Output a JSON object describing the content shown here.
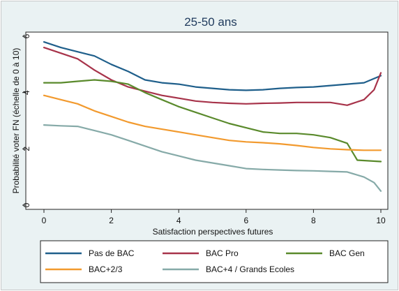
{
  "chart_data": {
    "type": "line",
    "title": "25-50 ans",
    "xlabel": "Satisfaction perspectives futures",
    "ylabel": "Probabilité voter FN (échelle de 0 à 10)",
    "xlim": [
      0,
      10
    ],
    "ylim": [
      0,
      6
    ],
    "xticks": [
      "0",
      "2",
      "4",
      "6",
      "8",
      "10"
    ],
    "yticks": [
      "0",
      "2",
      "4",
      "6"
    ],
    "grid": false,
    "legend_position": "bottom",
    "series": [
      {
        "name": "Pas de BAC",
        "color": "#1f5f8b",
        "points": [
          [
            0,
            5.8
          ],
          [
            0.5,
            5.6
          ],
          [
            1,
            5.45
          ],
          [
            1.5,
            5.3
          ],
          [
            2,
            5.0
          ],
          [
            2.5,
            4.75
          ],
          [
            3,
            4.45
          ],
          [
            3.5,
            4.35
          ],
          [
            4,
            4.3
          ],
          [
            4.5,
            4.2
          ],
          [
            5,
            4.15
          ],
          [
            5.5,
            4.1
          ],
          [
            6,
            4.08
          ],
          [
            6.5,
            4.1
          ],
          [
            7,
            4.15
          ],
          [
            7.5,
            4.18
          ],
          [
            8,
            4.2
          ],
          [
            8.5,
            4.25
          ],
          [
            9,
            4.3
          ],
          [
            9.5,
            4.35
          ],
          [
            10,
            4.6
          ]
        ]
      },
      {
        "name": "BAC Pro",
        "color": "#a7334a",
        "points": [
          [
            0,
            5.6
          ],
          [
            0.5,
            5.4
          ],
          [
            1,
            5.2
          ],
          [
            1.5,
            4.8
          ],
          [
            2,
            4.45
          ],
          [
            2.5,
            4.2
          ],
          [
            3,
            4.05
          ],
          [
            3.5,
            3.9
          ],
          [
            4,
            3.8
          ],
          [
            4.5,
            3.7
          ],
          [
            5,
            3.65
          ],
          [
            5.5,
            3.62
          ],
          [
            6,
            3.6
          ],
          [
            6.5,
            3.62
          ],
          [
            7,
            3.63
          ],
          [
            7.5,
            3.65
          ],
          [
            8,
            3.65
          ],
          [
            8.5,
            3.65
          ],
          [
            9,
            3.55
          ],
          [
            9.5,
            3.75
          ],
          [
            9.8,
            4.1
          ],
          [
            10,
            4.7
          ]
        ]
      },
      {
        "name": "BAC Gen",
        "color": "#5a8a2c",
        "points": [
          [
            0,
            4.35
          ],
          [
            0.5,
            4.35
          ],
          [
            1,
            4.4
          ],
          [
            1.5,
            4.45
          ],
          [
            2,
            4.4
          ],
          [
            2.5,
            4.3
          ],
          [
            3,
            4.0
          ],
          [
            3.5,
            3.75
          ],
          [
            4,
            3.5
          ],
          [
            4.5,
            3.3
          ],
          [
            5,
            3.1
          ],
          [
            5.5,
            2.9
          ],
          [
            6,
            2.75
          ],
          [
            6.5,
            2.6
          ],
          [
            7,
            2.55
          ],
          [
            7.5,
            2.55
          ],
          [
            8,
            2.5
          ],
          [
            8.5,
            2.4
          ],
          [
            9,
            2.2
          ],
          [
            9.3,
            1.6
          ],
          [
            10,
            1.55
          ]
        ]
      },
      {
        "name": "BAC+2/3",
        "color": "#f29a2e",
        "points": [
          [
            0,
            3.9
          ],
          [
            0.5,
            3.75
          ],
          [
            1,
            3.6
          ],
          [
            1.5,
            3.35
          ],
          [
            2,
            3.15
          ],
          [
            2.5,
            2.95
          ],
          [
            3,
            2.8
          ],
          [
            3.5,
            2.7
          ],
          [
            4,
            2.6
          ],
          [
            4.5,
            2.5
          ],
          [
            5,
            2.4
          ],
          [
            5.5,
            2.3
          ],
          [
            6,
            2.25
          ],
          [
            6.5,
            2.22
          ],
          [
            7,
            2.18
          ],
          [
            7.5,
            2.12
          ],
          [
            8,
            2.05
          ],
          [
            8.5,
            2.0
          ],
          [
            9,
            1.97
          ],
          [
            9.5,
            1.95
          ],
          [
            10,
            1.95
          ]
        ]
      },
      {
        "name": "BAC+4 / Grands Ecoles",
        "color": "#86aaa8",
        "points": [
          [
            0,
            2.85
          ],
          [
            0.5,
            2.82
          ],
          [
            1,
            2.8
          ],
          [
            1.5,
            2.65
          ],
          [
            2,
            2.5
          ],
          [
            2.5,
            2.3
          ],
          [
            3,
            2.1
          ],
          [
            3.5,
            1.9
          ],
          [
            4,
            1.75
          ],
          [
            4.5,
            1.6
          ],
          [
            5,
            1.5
          ],
          [
            5.5,
            1.4
          ],
          [
            6,
            1.3
          ],
          [
            6.5,
            1.27
          ],
          [
            7,
            1.25
          ],
          [
            7.5,
            1.23
          ],
          [
            8,
            1.22
          ],
          [
            8.5,
            1.2
          ],
          [
            9,
            1.18
          ],
          [
            9.5,
            1.0
          ],
          [
            9.8,
            0.8
          ],
          [
            10,
            0.5
          ]
        ]
      }
    ]
  }
}
